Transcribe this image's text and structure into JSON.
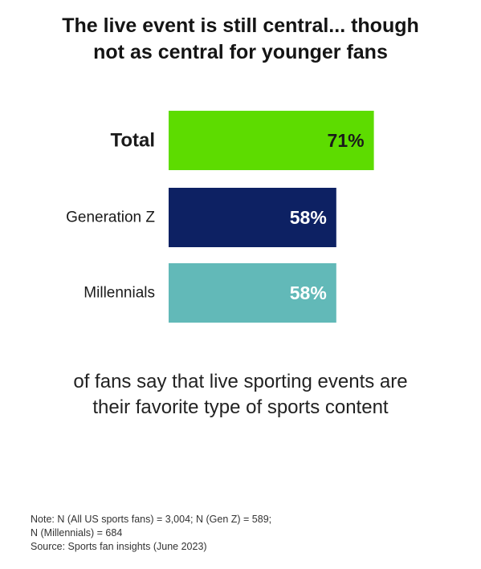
{
  "title": {
    "line1": "The live event is still central... though",
    "line2": "not as central for younger fans"
  },
  "caption": {
    "line1": "of fans say that live sporting events are",
    "line2": "their favorite type of sports content"
  },
  "notes": {
    "line1": "Note: N (All US sports fans) = 3,004; N (Gen Z) = 589;",
    "line2": "N (Millennials) = 684",
    "line3": "Source: Sports fan insights (June 2023)"
  },
  "chart_data": {
    "type": "bar",
    "orientation": "horizontal",
    "categories": [
      "Total",
      "Generation Z",
      "Millennials"
    ],
    "values": [
      71,
      58,
      58
    ],
    "value_labels": [
      "71%",
      "58%",
      "58%"
    ],
    "colors": [
      "#5ddc00",
      "#0d2163",
      "#62b9b8"
    ],
    "value_label_colors": [
      "#1a1a1a",
      "#ffffff",
      "#ffffff"
    ],
    "emphasized_category": "Total",
    "unit": "%",
    "xlim": [
      0,
      100
    ],
    "grid": false,
    "legend": "none"
  }
}
